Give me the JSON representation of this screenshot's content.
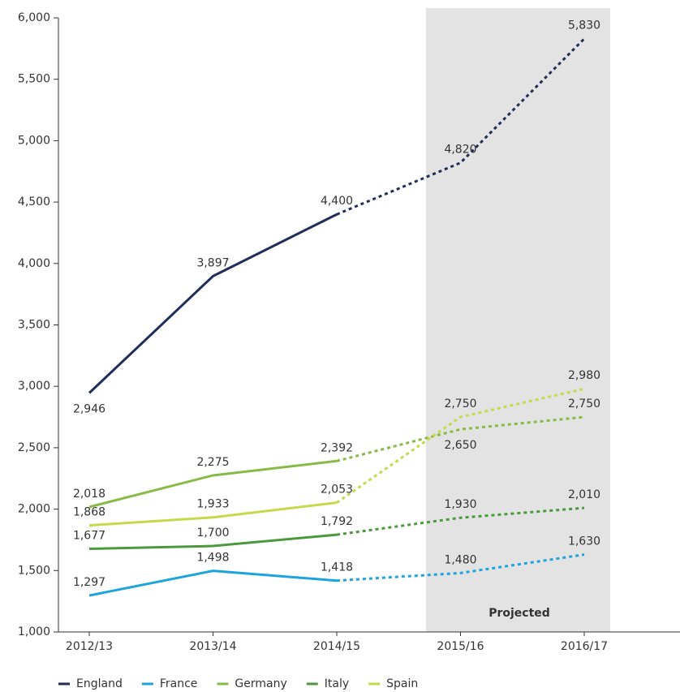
{
  "chart_data": {
    "type": "line",
    "categories": [
      "2012/13",
      "2013/14",
      "2014/15",
      "2015/16",
      "2016/17"
    ],
    "series": [
      {
        "name": "England",
        "color": "#1f2d5a",
        "values": [
          2946,
          3897,
          4400,
          4820,
          5830
        ],
        "value_labels": [
          "2,946",
          "3,897",
          "4,400",
          "4,820",
          "5,830"
        ]
      },
      {
        "name": "France",
        "color": "#1ba4dd",
        "values": [
          1297,
          1498,
          1418,
          1480,
          1630
        ],
        "value_labels": [
          "1,297",
          "1,498",
          "1,418",
          "1,480",
          "1,630"
        ]
      },
      {
        "name": "Germany",
        "color": "#86bc45",
        "values": [
          2018,
          2275,
          2392,
          2650,
          2750
        ],
        "value_labels": [
          "2,018",
          "2,275",
          "2,392",
          "2,650",
          "2,750"
        ]
      },
      {
        "name": "Italy",
        "color": "#4a9a3c",
        "values": [
          1677,
          1700,
          1792,
          1930,
          2010
        ],
        "value_labels": [
          "1,677",
          "1,700",
          "1,792",
          "1,930",
          "2,010"
        ]
      },
      {
        "name": "Spain",
        "color": "#c6d94a",
        "values": [
          1868,
          1933,
          2053,
          2750,
          2980
        ],
        "value_labels": [
          "1,868",
          "1,933",
          "2,053",
          "2,750",
          "2,980"
        ]
      }
    ],
    "annotation": "Projected",
    "ylim": [
      1000,
      6000
    ],
    "yticks": [
      {
        "value": 1000,
        "label": "1,000"
      },
      {
        "value": 1500,
        "label": "1,500"
      },
      {
        "value": 2000,
        "label": "2,000"
      },
      {
        "value": 2500,
        "label": "2,500"
      },
      {
        "value": 3000,
        "label": "3,000"
      },
      {
        "value": 3500,
        "label": "3,500"
      },
      {
        "value": 4000,
        "label": "4,000"
      },
      {
        "value": 4500,
        "label": "4,500"
      },
      {
        "value": 5000,
        "label": "5,000"
      },
      {
        "value": 5500,
        "label": "5,500"
      },
      {
        "value": 6000,
        "label": "6,000"
      }
    ],
    "grid": false,
    "legend": "bottom"
  }
}
